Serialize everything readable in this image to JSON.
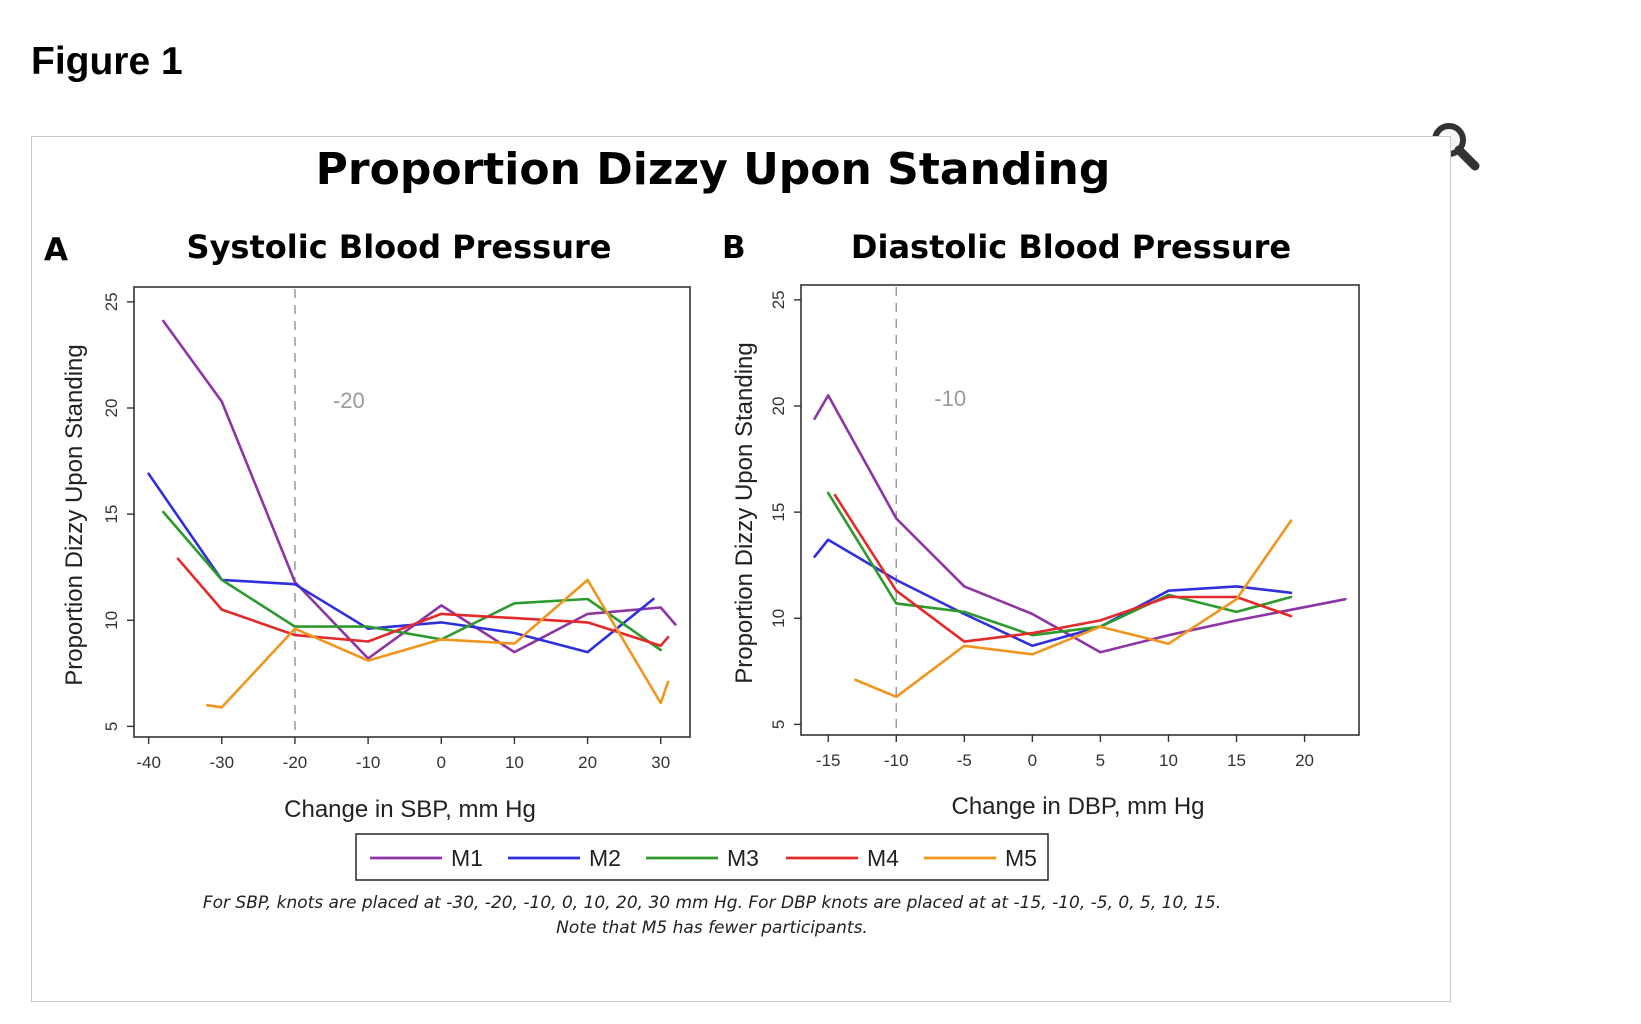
{
  "page": {
    "heading": "Figure 1",
    "zoom_icon": "magnifier-icon"
  },
  "figure": {
    "main_title": "Proportion Dizzy Upon Standing",
    "legend": [
      {
        "label": "M1",
        "color": "#8e35a6"
      },
      {
        "label": "M2",
        "color": "#2f2fdc"
      },
      {
        "label": "M3",
        "color": "#2e9a2e"
      },
      {
        "label": "M4",
        "color": "#e22a2a"
      },
      {
        "label": "M5",
        "color": "#f0961e"
      }
    ],
    "footnote_line1": "For SBP, knots are placed at -30, -20, -10, 0, 10, 20, 30 mm Hg. For DBP knots are placed at at -15, -10, -5, 0, 5, 10, 15.",
    "footnote_line2": "Note that M5 has fewer participants."
  },
  "chart_data": [
    {
      "type": "line",
      "panel_letter": "A",
      "title": "Systolic Blood Pressure",
      "xlabel": "Change in SBP, mm Hg",
      "ylabel": "Proportion Dizzy Upon Standing",
      "xlim": [
        -42,
        34
      ],
      "ylim": [
        4.5,
        25.7
      ],
      "xticks": [
        -40,
        -30,
        -20,
        -10,
        0,
        10,
        20,
        30
      ],
      "yticks": [
        5,
        10,
        15,
        20,
        25
      ],
      "reference_line": {
        "x": -20,
        "label": "-20"
      },
      "series": [
        {
          "name": "M1",
          "color": "#8e35a6",
          "points": [
            [
              -38,
              24.1
            ],
            [
              -30,
              20.3
            ],
            [
              -20,
              11.8
            ],
            [
              -10,
              8.2
            ],
            [
              0,
              10.7
            ],
            [
              10,
              8.5
            ],
            [
              20,
              10.3
            ],
            [
              30,
              10.6
            ],
            [
              32,
              9.8
            ]
          ]
        },
        {
          "name": "M2",
          "color": "#2f2fdc",
          "points": [
            [
              -40,
              16.9
            ],
            [
              -30,
              11.9
            ],
            [
              -20,
              11.7
            ],
            [
              -10,
              9.6
            ],
            [
              0,
              9.9
            ],
            [
              10,
              9.4
            ],
            [
              20,
              8.5
            ],
            [
              29,
              11.0
            ]
          ]
        },
        {
          "name": "M3",
          "color": "#2e9a2e",
          "points": [
            [
              -38,
              15.1
            ],
            [
              -30,
              11.9
            ],
            [
              -20,
              9.7
            ],
            [
              -10,
              9.7
            ],
            [
              0,
              9.1
            ],
            [
              10,
              10.8
            ],
            [
              20,
              11.0
            ],
            [
              30,
              8.6
            ]
          ]
        },
        {
          "name": "M4",
          "color": "#e22a2a",
          "points": [
            [
              -36,
              12.9
            ],
            [
              -30,
              10.5
            ],
            [
              -20,
              9.3
            ],
            [
              -10,
              9.0
            ],
            [
              0,
              10.3
            ],
            [
              10,
              10.1
            ],
            [
              20,
              9.9
            ],
            [
              30,
              8.8
            ],
            [
              31,
              9.2
            ]
          ]
        },
        {
          "name": "M5",
          "color": "#f0961e",
          "points": [
            [
              -32,
              6.0
            ],
            [
              -30,
              5.9
            ],
            [
              -20,
              9.6
            ],
            [
              -10,
              8.1
            ],
            [
              0,
              9.1
            ],
            [
              10,
              8.9
            ],
            [
              20,
              11.9
            ],
            [
              30,
              6.1
            ],
            [
              31,
              7.1
            ]
          ]
        }
      ]
    },
    {
      "type": "line",
      "panel_letter": "B",
      "title": "Diastolic Blood Pressure",
      "xlabel": "Change in DBP, mm Hg",
      "ylabel": "Proportion Dizzy Upon Standing",
      "xlim": [
        -17,
        24
      ],
      "ylim": [
        4.5,
        25.7
      ],
      "xticks": [
        -15,
        -10,
        -5,
        0,
        5,
        10,
        15,
        20
      ],
      "yticks": [
        5,
        10,
        15,
        20,
        25
      ],
      "reference_line": {
        "x": -10,
        "label": "-10"
      },
      "series": [
        {
          "name": "M1",
          "color": "#8e35a6",
          "points": [
            [
              -16,
              19.4
            ],
            [
              -15,
              20.5
            ],
            [
              -10,
              14.7
            ],
            [
              -5,
              11.5
            ],
            [
              0,
              10.2
            ],
            [
              5,
              8.4
            ],
            [
              10,
              9.2
            ],
            [
              15,
              9.9
            ],
            [
              23,
              10.9
            ]
          ]
        },
        {
          "name": "M2",
          "color": "#2f2fdc",
          "points": [
            [
              -16,
              12.9
            ],
            [
              -15,
              13.7
            ],
            [
              -10,
              11.8
            ],
            [
              -5,
              10.2
            ],
            [
              0,
              8.7
            ],
            [
              5,
              9.6
            ],
            [
              10,
              11.3
            ],
            [
              15,
              11.5
            ],
            [
              19,
              11.2
            ]
          ]
        },
        {
          "name": "M3",
          "color": "#2e9a2e",
          "points": [
            [
              -15,
              15.9
            ],
            [
              -10,
              10.7
            ],
            [
              -5,
              10.3
            ],
            [
              0,
              9.2
            ],
            [
              5,
              9.6
            ],
            [
              10,
              11.1
            ],
            [
              15,
              10.3
            ],
            [
              19,
              11.0
            ]
          ]
        },
        {
          "name": "M4",
          "color": "#e22a2a",
          "points": [
            [
              -14.5,
              15.8
            ],
            [
              -10,
              11.3
            ],
            [
              -5,
              8.9
            ],
            [
              0,
              9.3
            ],
            [
              5,
              9.9
            ],
            [
              10,
              11.0
            ],
            [
              15,
              11.0
            ],
            [
              19,
              10.1
            ]
          ]
        },
        {
          "name": "M5",
          "color": "#f0961e",
          "points": [
            [
              -13,
              7.1
            ],
            [
              -10,
              6.3
            ],
            [
              -5,
              8.7
            ],
            [
              0,
              8.3
            ],
            [
              5,
              9.6
            ],
            [
              10,
              8.8
            ],
            [
              15,
              10.9
            ],
            [
              19,
              14.6
            ]
          ]
        }
      ]
    }
  ]
}
